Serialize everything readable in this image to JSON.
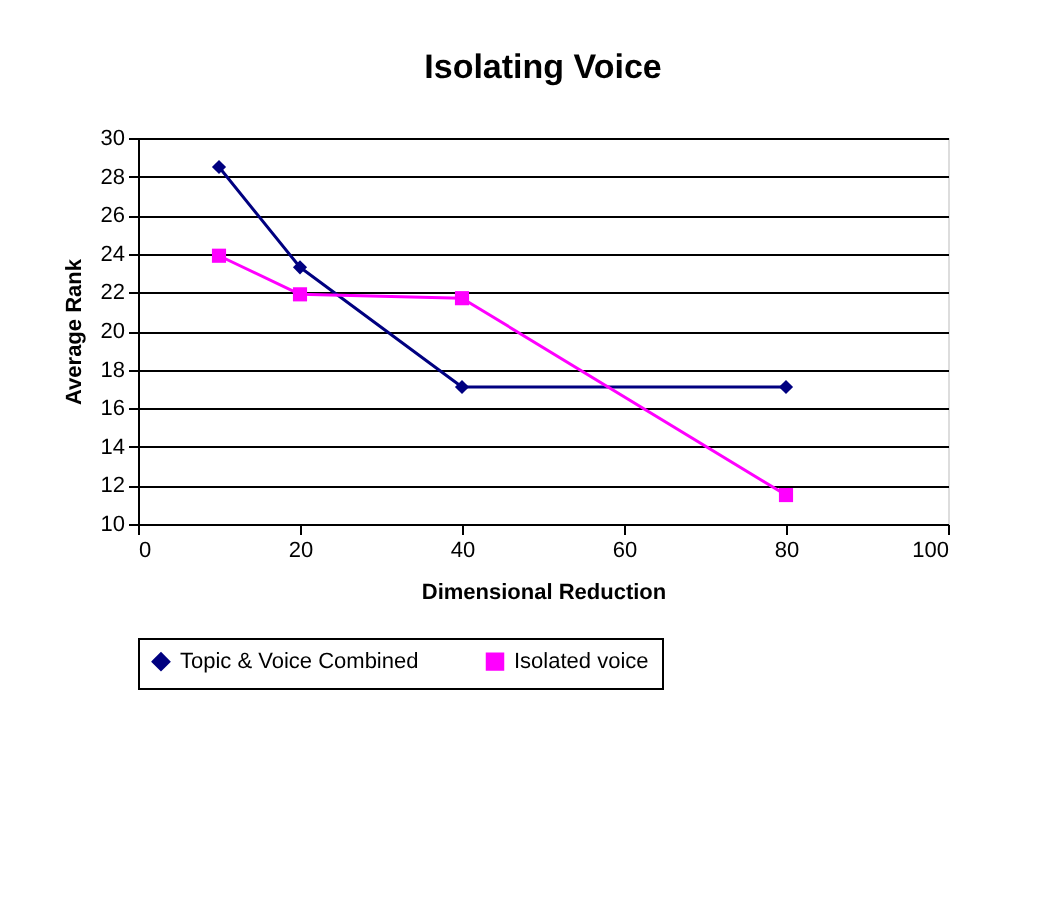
{
  "chart_data": {
    "type": "line",
    "title": "Isolating Voice",
    "xlabel": "Dimensional Reduction",
    "ylabel": "Average Rank",
    "x": [
      10,
      20,
      40,
      80
    ],
    "series": [
      {
        "name": "Topic & Voice Combined",
        "color": "#000080",
        "marker": "diamond",
        "values": [
          28.5,
          23.3,
          17.1,
          17.1
        ]
      },
      {
        "name": "Isolated voice",
        "color": "#ff00ff",
        "marker": "square",
        "values": [
          23.9,
          21.9,
          21.7,
          11.5
        ]
      }
    ],
    "xlim": [
      0,
      100
    ],
    "xticks": [
      0,
      20,
      40,
      60,
      80,
      100
    ],
    "ylim": [
      10,
      30
    ],
    "yticks": [
      10,
      12,
      14,
      16,
      18,
      20,
      22,
      24,
      26,
      28,
      30
    ],
    "grid": "y",
    "legend": "bottom",
    "line_style": "solid"
  }
}
